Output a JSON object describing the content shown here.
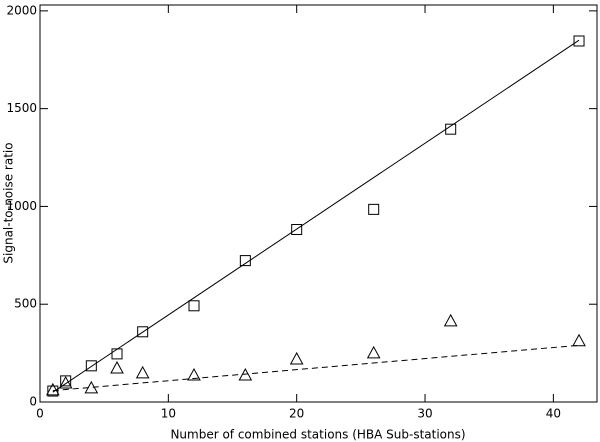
{
  "chart_data": {
    "type": "scatter",
    "x_label": "Number of combined stations (HBA Sub-stations)",
    "y_label": "Signal-to-noise ratio",
    "xlim": [
      0,
      43.4
    ],
    "ylim": [
      0,
      2030
    ],
    "xticks": [
      0,
      10,
      20,
      30,
      40
    ],
    "yticks": [
      0,
      500,
      1000,
      1500,
      2000
    ],
    "series": [
      {
        "marker": "square",
        "color": "#000000",
        "x": [
          1,
          2,
          4,
          6,
          8,
          12,
          16,
          20,
          26,
          32,
          42
        ],
        "values": [
          56,
          108,
          185,
          246,
          359,
          492,
          723,
          882,
          985,
          1395,
          1846
        ]
      },
      {
        "marker": "triangle",
        "color": "#000000",
        "x": [
          1,
          2,
          4,
          6,
          8,
          12,
          16,
          20,
          26,
          32,
          42
        ],
        "values": [
          62,
          97,
          72,
          174,
          149,
          138,
          138,
          220,
          251,
          415,
          313
        ]
      },
      {
        "line": "solid",
        "color": "#000000",
        "x": [
          1,
          42
        ],
        "values": [
          50,
          1850
        ]
      },
      {
        "line": "dashed",
        "color": "#000000",
        "x": [
          1,
          42
        ],
        "values": [
          58,
          290
        ]
      }
    ]
  }
}
